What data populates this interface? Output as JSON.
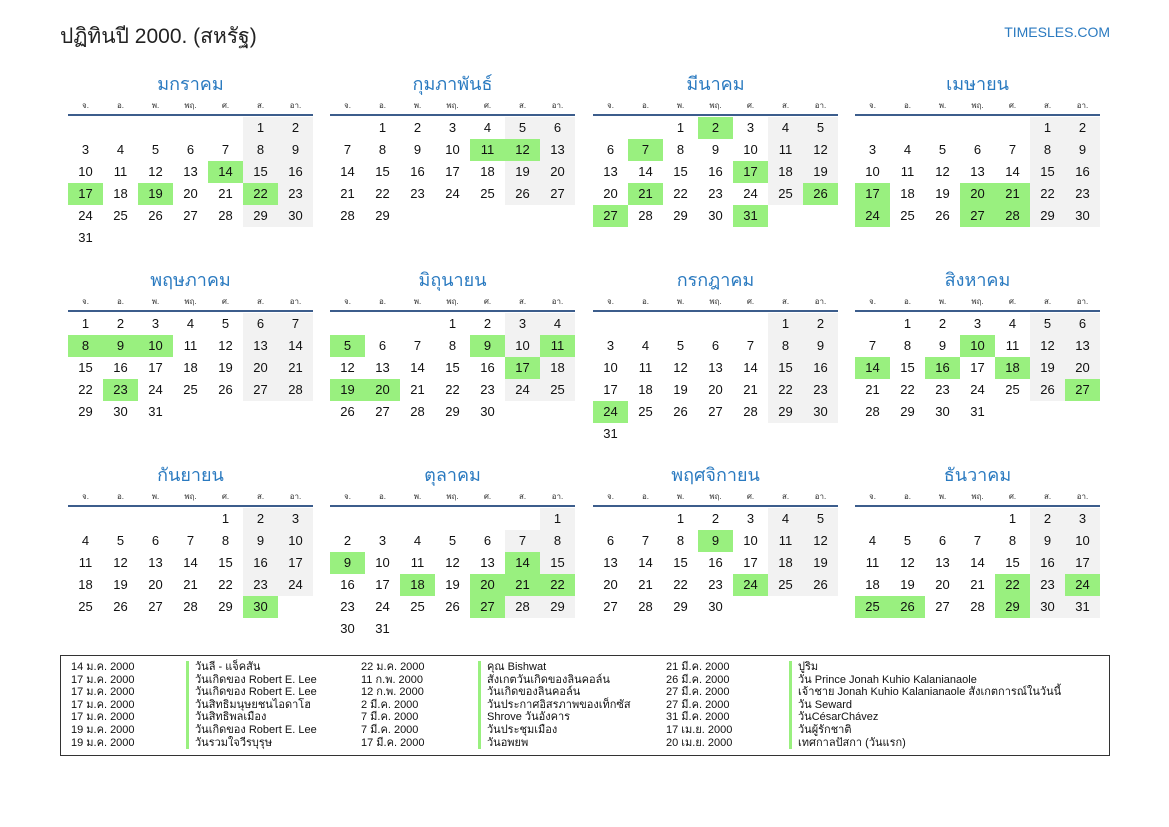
{
  "header": {
    "title": "ปฏิทินปี 2000. (สหรัฐ)",
    "brand": "TIMESLES.COM"
  },
  "weekdays": [
    "จ.",
    "อ.",
    "พ.",
    "พฤ.",
    "ศ.",
    "ส.",
    "อา."
  ],
  "colors": {
    "accent": "#2a7ac0",
    "highlight": "#99f07f",
    "weekend": "#f2f2f2"
  },
  "months": [
    {
      "name": "มกราคม",
      "first_weekday": 5,
      "days": 31,
      "highlights": [
        14,
        17,
        19,
        22
      ]
    },
    {
      "name": "กุมภาพันธ์",
      "first_weekday": 1,
      "days": 29,
      "highlights": [
        11,
        12
      ]
    },
    {
      "name": "มีนาคม",
      "first_weekday": 2,
      "days": 31,
      "highlights": [
        2,
        7,
        17,
        21,
        26,
        27,
        31
      ]
    },
    {
      "name": "เมษายน",
      "first_weekday": 5,
      "days": 30,
      "highlights": [
        17,
        20,
        21,
        24,
        27,
        28
      ]
    },
    {
      "name": "พฤษภาคม",
      "first_weekday": 0,
      "days": 31,
      "highlights": [
        8,
        9,
        10,
        23
      ]
    },
    {
      "name": "มิถุนายน",
      "first_weekday": 3,
      "days": 30,
      "highlights": [
        5,
        9,
        11,
        17,
        19,
        20
      ]
    },
    {
      "name": "กรกฎาคม",
      "first_weekday": 5,
      "days": 31,
      "highlights": [
        24
      ]
    },
    {
      "name": "สิงหาคม",
      "first_weekday": 1,
      "days": 31,
      "highlights": [
        10,
        14,
        16,
        18,
        27
      ]
    },
    {
      "name": "กันยายน",
      "first_weekday": 4,
      "days": 30,
      "highlights": [
        30
      ]
    },
    {
      "name": "ตุลาคม",
      "first_weekday": 6,
      "days": 31,
      "highlights": [
        9,
        14,
        18,
        20,
        21,
        22,
        27
      ]
    },
    {
      "name": "พฤศจิกายน",
      "first_weekday": 2,
      "days": 30,
      "highlights": [
        9,
        24
      ]
    },
    {
      "name": "ธันวาคม",
      "first_weekday": 4,
      "days": 31,
      "highlights": [
        22,
        24,
        25,
        26,
        29
      ]
    }
  ],
  "holidays": [
    [
      {
        "date": "14 ม.ค. 2000",
        "name": "วันลี - แจ็คสัน"
      },
      {
        "date": "17 ม.ค. 2000",
        "name": "วันเกิดของ Robert E. Lee"
      },
      {
        "date": "17 ม.ค. 2000",
        "name": "วันเกิดของ Robert E. Lee"
      },
      {
        "date": "17 ม.ค. 2000",
        "name": "วันสิทธิมนุษยชนไอดาโฮ"
      },
      {
        "date": "17 ม.ค. 2000",
        "name": "วันสิทธิพลเมือง"
      },
      {
        "date": "19 ม.ค. 2000",
        "name": "วันเกิดของ Robert E. Lee"
      },
      {
        "date": "19 ม.ค. 2000",
        "name": "วันรวมใจวีรบุรุษ"
      }
    ],
    [
      {
        "date": "22 ม.ค. 2000",
        "name": "คุณ Bishwat"
      },
      {
        "date": "11 ก.พ. 2000",
        "name": "สังเกตวันเกิดของลินคอล์น"
      },
      {
        "date": "12 ก.พ. 2000",
        "name": "วันเกิดของลินคอล์น"
      },
      {
        "date": "2 มี.ค. 2000",
        "name": "วันประกาศอิสรภาพของเท็กซัส"
      },
      {
        "date": "7 มี.ค. 2000",
        "name": "Shrove วันอังคาร"
      },
      {
        "date": "7 มี.ค. 2000",
        "name": "วันประชุมเมือง"
      },
      {
        "date": "17 มี.ค. 2000",
        "name": "วันอพยพ"
      }
    ],
    [
      {
        "date": "21 มี.ค. 2000",
        "name": "ปูริม"
      },
      {
        "date": "26 มี.ค. 2000",
        "name": "วัน Prince Jonah Kuhio Kalanianaole"
      },
      {
        "date": "27 มี.ค. 2000",
        "name": "เจ้าชาย Jonah Kuhio Kalanianaole สังเกตการณ์ในวันนี้"
      },
      {
        "date": "27 มี.ค. 2000",
        "name": "วัน Seward"
      },
      {
        "date": "31 มี.ค. 2000",
        "name": "วันCésarChávez"
      },
      {
        "date": "17 เม.ย. 2000",
        "name": "วันผู้รักชาติ"
      },
      {
        "date": "20 เม.ย. 2000",
        "name": "เทศกาลปัสกา (วันแรก)"
      }
    ]
  ]
}
